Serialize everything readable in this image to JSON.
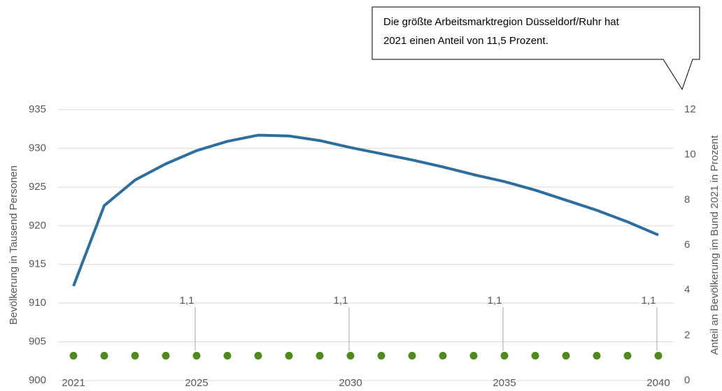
{
  "chart_data": {
    "type": "line",
    "annotation": [
      "Die größte Arbeitsmarktregion Düsseldorf/Ruhr hat",
      "2021 einen Anteil von 11,5 Prozent."
    ],
    "ylabel": "Bevölkerung in Tausend Personen",
    "y2label": "Anteil an Bevölkerung im Bund 2021 in Prozent",
    "x": [
      2021,
      2022,
      2023,
      2024,
      2025,
      2026,
      2027,
      2028,
      2029,
      2030,
      2031,
      2032,
      2033,
      2034,
      2035,
      2036,
      2037,
      2038,
      2039,
      2040
    ],
    "xlim": [
      2021,
      2040
    ],
    "xticks": [
      2021,
      2025,
      2030,
      2035,
      2040
    ],
    "ylim": [
      900,
      935
    ],
    "yticks": [
      900,
      905,
      910,
      915,
      920,
      925,
      930,
      935
    ],
    "y2lim": [
      0,
      12
    ],
    "y2ticks": [
      0,
      2,
      4,
      6,
      8,
      10,
      12
    ],
    "grid": true,
    "series": [
      {
        "color": "#2e6e9e",
        "values": [
          912.2,
          922.6,
          925.9,
          928.0,
          929.7,
          930.9,
          931.7,
          931.6,
          931.0,
          930.1,
          929.3,
          928.5,
          927.6,
          926.6,
          925.7,
          924.6,
          923.3,
          922.0,
          920.5,
          918.8
        ]
      },
      {
        "color": "#4e8a1e",
        "axis": "y2",
        "style": "dots",
        "values": [
          1.1,
          1.1,
          1.1,
          1.1,
          1.1,
          1.1,
          1.1,
          1.1,
          1.1,
          1.1,
          1.1,
          1.1,
          1.1,
          1.1,
          1.1,
          1.1,
          1.1,
          1.1,
          1.1,
          1.1
        ],
        "value_labels": [
          null,
          null,
          null,
          null,
          "1,1",
          null,
          null,
          null,
          null,
          "1,1",
          null,
          null,
          null,
          null,
          "1,1",
          null,
          null,
          null,
          null,
          "1,1"
        ]
      }
    ]
  }
}
